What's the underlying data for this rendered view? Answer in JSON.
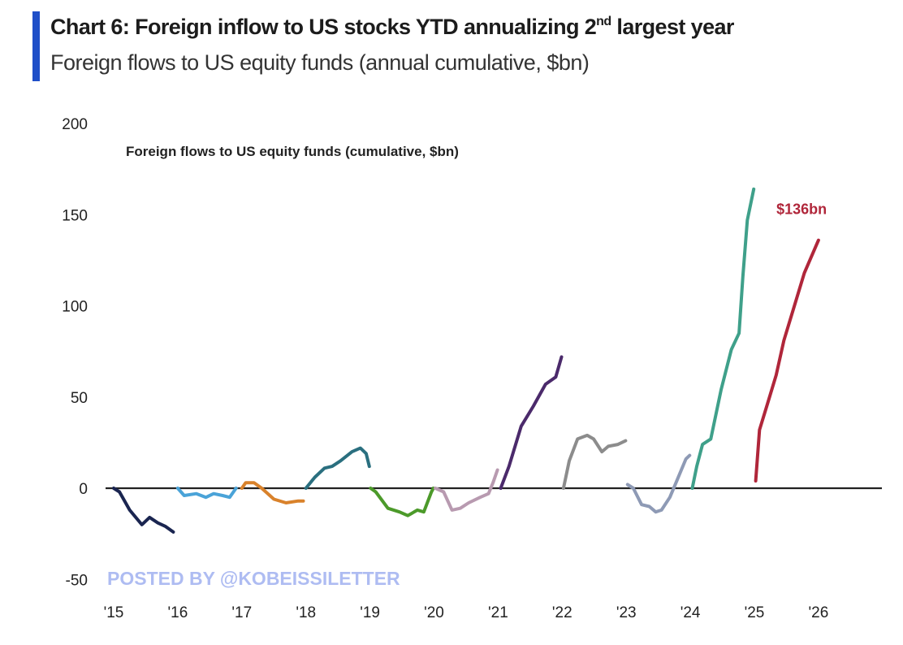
{
  "header": {
    "title_pre": "Chart 6: Foreign inflow to US stocks YTD annualizing 2",
    "title_sup": "nd",
    "title_post": " largest year",
    "subtitle": "Foreign flows to US equity funds (annual cumulative, $bn)",
    "accent_color": "#1f4fc8"
  },
  "watermark": "POSTED BY @KOBEISSILETTER",
  "chart_data": {
    "type": "line",
    "title": "Foreign flows to US equity funds (cumulative, $bn)",
    "xlabel": "",
    "ylabel": "",
    "ylim": [
      -50,
      200
    ],
    "xlim": [
      2014.9,
      2027
    ],
    "yticks": [
      200,
      150,
      100,
      50,
      0,
      -50
    ],
    "xticks": [
      {
        "value": 2015,
        "label": "'15"
      },
      {
        "value": 2016,
        "label": "'16"
      },
      {
        "value": 2017,
        "label": "'17"
      },
      {
        "value": 2018,
        "label": "'18"
      },
      {
        "value": 2019,
        "label": "'19"
      },
      {
        "value": 2020,
        "label": "'20"
      },
      {
        "value": 2021,
        "label": "'21"
      },
      {
        "value": 2022,
        "label": "'22"
      },
      {
        "value": 2023,
        "label": "'23"
      },
      {
        "value": 2024,
        "label": "'24"
      },
      {
        "value": 2025,
        "label": "'25"
      },
      {
        "value": 2026,
        "label": "'26"
      }
    ],
    "grid": false,
    "zero_line": true,
    "annotation": {
      "text": "$136bn",
      "x": 2025.85,
      "y": 150,
      "color": "#b0263a"
    },
    "series": [
      {
        "color": "#1a2550",
        "points": [
          [
            2015.0,
            0
          ],
          [
            2015.09,
            -2
          ],
          [
            2015.25,
            -12
          ],
          [
            2015.44,
            -20
          ],
          [
            2015.56,
            -16
          ],
          [
            2015.69,
            -19
          ],
          [
            2015.81,
            -21
          ],
          [
            2015.93,
            -24
          ]
        ]
      },
      {
        "color": "#4aa3d8",
        "points": [
          [
            2016.0,
            0
          ],
          [
            2016.1,
            -4
          ],
          [
            2016.29,
            -3
          ],
          [
            2016.44,
            -5
          ],
          [
            2016.56,
            -3
          ],
          [
            2016.7,
            -4
          ],
          [
            2016.81,
            -5
          ],
          [
            2016.91,
            0
          ]
        ]
      },
      {
        "color": "#d9822b",
        "points": [
          [
            2017.0,
            0
          ],
          [
            2017.06,
            3
          ],
          [
            2017.19,
            3
          ],
          [
            2017.31,
            0
          ],
          [
            2017.5,
            -6
          ],
          [
            2017.69,
            -8
          ],
          [
            2017.88,
            -7
          ],
          [
            2017.96,
            -7
          ]
        ]
      },
      {
        "color": "#2a6f7f",
        "points": [
          [
            2018.0,
            0
          ],
          [
            2018.14,
            6
          ],
          [
            2018.29,
            11
          ],
          [
            2018.41,
            12
          ],
          [
            2018.54,
            15
          ],
          [
            2018.72,
            20
          ],
          [
            2018.85,
            22
          ],
          [
            2018.94,
            19
          ],
          [
            2018.99,
            12
          ]
        ]
      },
      {
        "color": "#4c9a2a",
        "points": [
          [
            2019.01,
            0
          ],
          [
            2019.09,
            -2
          ],
          [
            2019.28,
            -11
          ],
          [
            2019.46,
            -13
          ],
          [
            2019.59,
            -15
          ],
          [
            2019.74,
            -12
          ],
          [
            2019.84,
            -13
          ],
          [
            2019.96,
            -2
          ],
          [
            2019.99,
            0
          ]
        ]
      },
      {
        "color": "#b89ab0",
        "points": [
          [
            2020.02,
            0
          ],
          [
            2020.15,
            -2
          ],
          [
            2020.28,
            -12
          ],
          [
            2020.41,
            -11
          ],
          [
            2020.54,
            -8
          ],
          [
            2020.72,
            -5
          ],
          [
            2020.85,
            -3
          ],
          [
            2020.92,
            3
          ],
          [
            2020.99,
            10
          ]
        ]
      },
      {
        "color": "#4b2a6b",
        "points": [
          [
            2021.04,
            0
          ],
          [
            2021.17,
            12
          ],
          [
            2021.36,
            34
          ],
          [
            2021.55,
            45
          ],
          [
            2021.74,
            57
          ],
          [
            2021.9,
            61
          ],
          [
            2021.99,
            72
          ]
        ]
      },
      {
        "color": "#8c8c8c",
        "points": [
          [
            2022.02,
            0
          ],
          [
            2022.11,
            15
          ],
          [
            2022.24,
            27
          ],
          [
            2022.39,
            29
          ],
          [
            2022.49,
            27
          ],
          [
            2022.62,
            20
          ],
          [
            2022.72,
            23
          ],
          [
            2022.87,
            24
          ],
          [
            2022.99,
            26
          ]
        ]
      },
      {
        "color": "#8e9ab5",
        "points": [
          [
            2023.02,
            2
          ],
          [
            2023.11,
            0
          ],
          [
            2023.24,
            -9
          ],
          [
            2023.36,
            -10
          ],
          [
            2023.46,
            -13
          ],
          [
            2023.55,
            -12
          ],
          [
            2023.68,
            -5
          ],
          [
            2023.8,
            5
          ],
          [
            2023.93,
            16
          ],
          [
            2023.99,
            18
          ]
        ]
      },
      {
        "color": "#3fa08a",
        "points": [
          [
            2024.03,
            0
          ],
          [
            2024.1,
            12
          ],
          [
            2024.19,
            24
          ],
          [
            2024.32,
            27
          ],
          [
            2024.48,
            54
          ],
          [
            2024.64,
            76
          ],
          [
            2024.76,
            85
          ],
          [
            2024.82,
            116
          ],
          [
            2024.89,
            147
          ],
          [
            2024.99,
            164
          ]
        ]
      },
      {
        "color": "#b0263a",
        "points": [
          [
            2025.02,
            4
          ],
          [
            2025.08,
            32
          ],
          [
            2025.21,
            47
          ],
          [
            2025.34,
            62
          ],
          [
            2025.46,
            81
          ],
          [
            2025.78,
            118
          ],
          [
            2026.0,
            136
          ]
        ]
      }
    ]
  }
}
